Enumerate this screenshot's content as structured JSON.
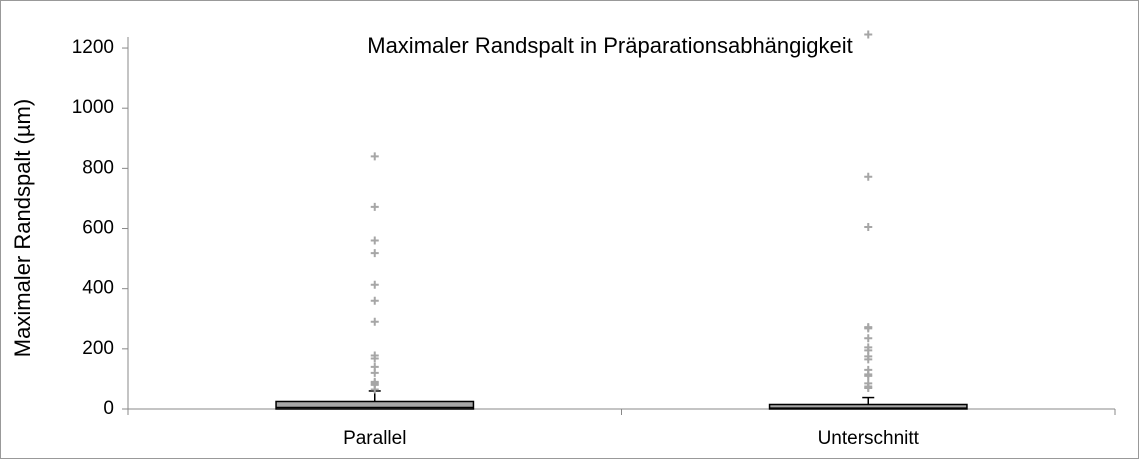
{
  "chart_data": {
    "type": "box",
    "title": "Maximaler Randspalt in Präparationsabhängigkeit",
    "y_label": "Maximaler Randspalt (µm)",
    "categories": [
      "Parallel",
      "Unterschnitt"
    ],
    "boxes": [
      {
        "min": 0,
        "q1": 0,
        "median": 5,
        "q3": 25,
        "max": 60,
        "outliers": [
          840,
          672,
          560,
          518,
          413,
          360,
          290,
          178,
          168,
          140,
          120,
          90,
          85,
          80,
          65
        ]
      },
      {
        "min": 0,
        "q1": 0,
        "median": 3,
        "q3": 15,
        "max": 38,
        "outliers": [
          1245,
          772,
          605,
          272,
          268,
          235,
          205,
          195,
          175,
          165,
          130,
          115,
          110,
          85,
          75,
          70
        ]
      }
    ],
    "box_color": "#a6a6a6",
    "outlier_color": "#a6a6a6",
    "ylim": [
      0,
      1250
    ],
    "yticks": [
      0,
      200,
      400,
      600,
      800,
      1000,
      1200
    ],
    "grid": false
  }
}
